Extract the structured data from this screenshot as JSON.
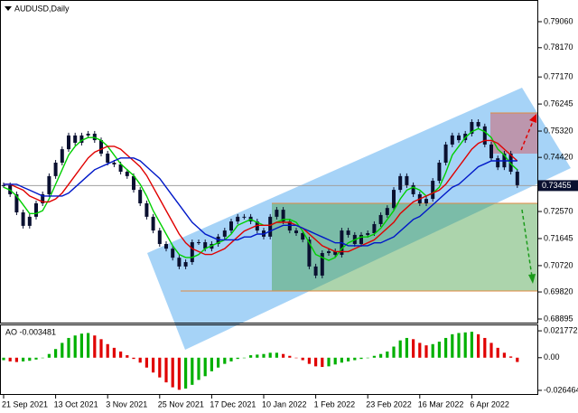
{
  "title": "AUDUSD,Daily",
  "chart_data": {
    "type": "candlestick",
    "categories": [
      "21 Sep 2021",
      null,
      null,
      null,
      null,
      null,
      null,
      null,
      "13 Oct 2021",
      null,
      null,
      null,
      null,
      null,
      null,
      null,
      "3 Nov 2021",
      null,
      null,
      null,
      null,
      null,
      null,
      null,
      "25 Nov 2021",
      null,
      null,
      null,
      null,
      null,
      null,
      null,
      "17 Dec 2021",
      null,
      null,
      null,
      null,
      null,
      null,
      null,
      "10 Jan 2022",
      null,
      null,
      null,
      null,
      null,
      null,
      null,
      "1 Feb 2022",
      null,
      null,
      null,
      null,
      null,
      null,
      null,
      "23 Feb 2022",
      null,
      null,
      null,
      null,
      null,
      null,
      null,
      "16 Mar 2022",
      null,
      null,
      null,
      null,
      null,
      null,
      null,
      "6 Apr 2022",
      null,
      null,
      null,
      null,
      null,
      null,
      null
    ],
    "close": [
      0.7347,
      0.7316,
      0.7254,
      0.7208,
      0.7239,
      0.7285,
      0.7316,
      0.7378,
      0.7424,
      0.747,
      0.7517,
      0.7492,
      0.7517,
      0.7523,
      0.7501,
      0.7455,
      0.7424,
      0.7418,
      0.7393,
      0.7378,
      0.7331,
      0.7285,
      0.7239,
      0.7192,
      0.7146,
      0.713,
      0.7099,
      0.7069,
      0.7084,
      0.7152,
      0.7152,
      0.713,
      0.7146,
      0.7171,
      0.7192,
      0.7223,
      0.7239,
      0.7239,
      0.7223,
      0.7192,
      0.7171,
      0.7239,
      0.7263,
      0.7223,
      0.7192,
      0.7183,
      0.7161,
      0.7069,
      0.7038,
      0.7115,
      0.7121,
      0.7109,
      0.7192,
      0.7177,
      0.7146,
      0.7177,
      0.7183,
      0.7214,
      0.7245,
      0.7269,
      0.7331,
      0.7378,
      0.7347,
      0.7316,
      0.7285,
      0.73,
      0.7362,
      0.7424,
      0.7486,
      0.7517,
      0.7501,
      0.7523,
      0.7563,
      0.7548,
      0.7486,
      0.7439,
      0.7408,
      0.7455,
      0.7393,
      0.7347
    ],
    "candle_color": "#0a1030",
    "moving_averages": [
      {
        "color": "#00d000",
        "values": [
          0.734,
          0.733,
          0.731,
          0.728,
          0.725,
          0.725,
          0.726,
          0.73,
          0.735,
          0.74,
          0.745,
          0.748,
          0.75,
          0.751,
          0.751,
          0.75,
          0.748,
          0.745,
          0.742,
          0.74,
          0.738,
          0.735,
          0.731,
          0.726,
          0.722,
          0.718,
          0.714,
          0.711,
          0.71,
          0.71,
          0.711,
          0.713,
          0.714,
          0.715,
          0.716,
          0.718,
          0.721,
          0.722,
          0.723,
          0.722,
          0.721,
          0.721,
          0.722,
          0.723,
          0.723,
          0.722,
          0.719,
          0.715,
          0.711,
          0.71,
          0.709,
          0.71,
          0.713,
          0.715,
          0.716,
          0.717,
          0.717,
          0.718,
          0.72,
          0.723,
          0.726,
          0.73,
          0.733,
          0.734,
          0.733,
          0.731,
          0.732,
          0.734,
          0.739,
          0.745,
          0.748,
          0.751,
          0.753,
          0.754,
          0.753,
          0.751,
          0.747,
          0.745,
          0.742,
          0.74
        ]
      },
      {
        "color": "#e00000",
        "values": [
          0.735,
          0.735,
          0.734,
          0.733,
          0.731,
          0.73,
          0.729,
          0.729,
          0.73,
          0.732,
          0.735,
          0.738,
          0.741,
          0.744,
          0.746,
          0.747,
          0.748,
          0.748,
          0.747,
          0.745,
          0.743,
          0.741,
          0.738,
          0.734,
          0.73,
          0.726,
          0.722,
          0.718,
          0.715,
          0.713,
          0.712,
          0.711,
          0.711,
          0.712,
          0.713,
          0.715,
          0.717,
          0.719,
          0.72,
          0.721,
          0.721,
          0.721,
          0.722,
          0.722,
          0.722,
          0.721,
          0.72,
          0.718,
          0.716,
          0.714,
          0.713,
          0.712,
          0.712,
          0.712,
          0.713,
          0.714,
          0.715,
          0.716,
          0.718,
          0.72,
          0.722,
          0.725,
          0.727,
          0.729,
          0.73,
          0.731,
          0.732,
          0.733,
          0.735,
          0.738,
          0.741,
          0.744,
          0.747,
          0.749,
          0.75,
          0.75,
          0.749,
          0.747,
          0.745,
          0.743
        ]
      },
      {
        "color": "#0018c8",
        "values": [
          0.735,
          0.735,
          0.735,
          0.734,
          0.733,
          0.732,
          0.731,
          0.731,
          0.731,
          0.731,
          0.732,
          0.734,
          0.736,
          0.738,
          0.74,
          0.741,
          0.742,
          0.743,
          0.744,
          0.744,
          0.744,
          0.743,
          0.741,
          0.739,
          0.737,
          0.734,
          0.731,
          0.728,
          0.725,
          0.722,
          0.72,
          0.718,
          0.717,
          0.716,
          0.716,
          0.716,
          0.716,
          0.717,
          0.717,
          0.718,
          0.718,
          0.719,
          0.72,
          0.721,
          0.721,
          0.721,
          0.72,
          0.719,
          0.718,
          0.717,
          0.716,
          0.715,
          0.715,
          0.714,
          0.714,
          0.714,
          0.714,
          0.715,
          0.715,
          0.716,
          0.717,
          0.719,
          0.721,
          0.723,
          0.724,
          0.726,
          0.728,
          0.73,
          0.732,
          0.734,
          0.735,
          0.737,
          0.739,
          0.741,
          0.742,
          0.743,
          0.743,
          0.743,
          0.743,
          0.743
        ]
      }
    ],
    "ylim": [
      0.68771,
      0.79801
    ],
    "yticks": [
      {
        "value": 0.7906,
        "label": "0.79060"
      },
      {
        "value": 0.7817,
        "label": "0.78170"
      },
      {
        "value": 0.7717,
        "label": "0.77170"
      },
      0.76245,
      {
        "value": 0.7532,
        "label": "0.75320"
      },
      {
        "value": 0.7442,
        "label": "0.74420"
      },
      {
        "value": 0.7257,
        "label": "0.72570"
      },
      0.71645,
      {
        "value": 0.7072,
        "label": "0.70720"
      },
      {
        "value": 0.6982,
        "label": "0.69820"
      },
      0.68895
    ],
    "current_price": 0.73455,
    "indicator": {
      "label": "AO -0.003481",
      "up_color": "#00b000",
      "down_color": "#e00000",
      "values": [
        -0.002,
        -0.003,
        -0.0035,
        -0.003,
        -0.0025,
        -0.0015,
        0,
        0.003,
        0.007,
        0.012,
        0.016,
        0.018,
        0.0195,
        0.02,
        0.018,
        0.015,
        0.011,
        0.008,
        0.005,
        0.002,
        -0.001,
        -0.004,
        -0.008,
        -0.012,
        -0.016,
        -0.02,
        -0.024,
        -0.026,
        -0.025,
        -0.022,
        -0.018,
        -0.015,
        -0.011,
        -0.008,
        -0.005,
        -0.003,
        -0.001,
        0,
        0.002,
        0.0025,
        0.003,
        0.004,
        0.004,
        0.003,
        0.0015,
        0,
        -0.002,
        -0.005,
        -0.007,
        -0.0075,
        -0.007,
        -0.0055,
        -0.004,
        -0.003,
        -0.002,
        -0.001,
        0,
        0.0015,
        0.003,
        0.005,
        0.009,
        0.014,
        0.016,
        0.015,
        0.012,
        0.01,
        0.011,
        0.013,
        0.016,
        0.019,
        0.02,
        0.0205,
        0.021,
        0.019,
        0.016,
        0.012,
        0.008,
        0.004,
        0.001,
        -0.003481
      ],
      "ylim": [
        -0.03017,
        0.02695
      ],
      "yticks": [
        0.021772,
        {
          "value": 0,
          "label": "0.00"
        },
        -0.026464
      ]
    }
  }
}
